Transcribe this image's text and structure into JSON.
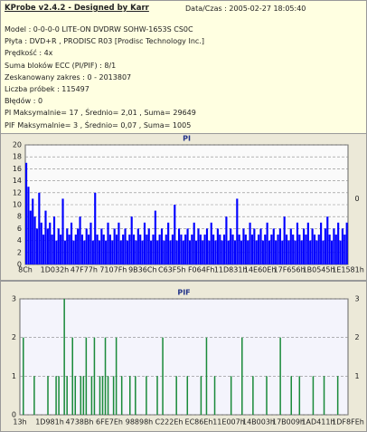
{
  "header": {
    "title": "KProbe v2.4.2 - Designed by Karr",
    "datetime": "Data/Czas : 2005-02-27 18:05:40",
    "lines": [
      "Model : 0-0-0-0 LITE-ON DVDRW SOHW-1653S CS0C",
      "Płyta : DVD+R , PRODISC R03 [Prodisc Technology Inc.]",
      "Prędkość : 4x",
      "Suma bloków ECC (PI/PIF) : 8/1",
      "Zeskanowany zakres : 0 - 2013807",
      "Liczba próbek : 115497",
      "Błędów : 0",
      "PI Maksymalnie= 17 , Średnio= 2,01 , Suma= 29649",
      "PIF Maksymalnie= 3 , Średnio= 0,07 , Suma= 1005"
    ]
  },
  "chart_data": [
    {
      "type": "bar",
      "title": "PI",
      "color": "#0000ff",
      "ylim": [
        0,
        20
      ],
      "yticks": [
        0,
        2,
        4,
        6,
        8,
        10,
        12,
        14,
        16,
        18,
        20
      ],
      "grid": true,
      "right_label": "0",
      "xtick_labels": [
        "8Ch",
        "1D032h",
        "47F77h",
        "7107Fh",
        "9B36Ch",
        "C63F5h",
        "F064Fh",
        "11D831h",
        "14E60Eh",
        "17F656h",
        "1B0545h",
        "1E1581h"
      ],
      "values": [
        17,
        13,
        9,
        11,
        8,
        6,
        12,
        7,
        5,
        9,
        6,
        7,
        5,
        8,
        4,
        6,
        5,
        11,
        4,
        6,
        5,
        7,
        4,
        5,
        6,
        8,
        5,
        4,
        6,
        5,
        7,
        4,
        12,
        5,
        4,
        6,
        5,
        4,
        7,
        5,
        4,
        6,
        5,
        7,
        4,
        5,
        6,
        4,
        5,
        8,
        5,
        4,
        6,
        5,
        4,
        7,
        5,
        6,
        4,
        5,
        9,
        4,
        5,
        6,
        4,
        5,
        7,
        4,
        5,
        10,
        4,
        6,
        5,
        4,
        5,
        6,
        4,
        5,
        7,
        4,
        6,
        5,
        4,
        5,
        6,
        4,
        7,
        5,
        4,
        6,
        5,
        4,
        5,
        8,
        4,
        6,
        5,
        4,
        11,
        5,
        4,
        6,
        5,
        4,
        7,
        5,
        6,
        4,
        5,
        6,
        4,
        5,
        7,
        4,
        5,
        6,
        4,
        5,
        6,
        4,
        8,
        5,
        4,
        6,
        5,
        4,
        7,
        5,
        4,
        6,
        5,
        7,
        4,
        6,
        5,
        4,
        5,
        7,
        4,
        6,
        8,
        5,
        4,
        6,
        5,
        7,
        4,
        6,
        5,
        7
      ]
    },
    {
      "type": "bar",
      "title": "PIF",
      "color": "#1a8a3a",
      "ylim": [
        0,
        3
      ],
      "yticks": [
        0,
        1,
        2,
        3
      ],
      "y2ticks": [
        1,
        2,
        3
      ],
      "grid": true,
      "xtick_labels": [
        "13h",
        "1D981h",
        "4738Bh",
        "6FE7Eh",
        "98898h",
        "C222Eh",
        "EC86Eh",
        "11E007h",
        "14B003h",
        "17B009h",
        "1AD411h",
        "1DF8FEh"
      ],
      "values": [
        0,
        2,
        0,
        0,
        0,
        1,
        0,
        0,
        0,
        0,
        1,
        0,
        0,
        1,
        1,
        0,
        3,
        1,
        0,
        2,
        1,
        0,
        1,
        1,
        2,
        0,
        1,
        2,
        0,
        1,
        1,
        2,
        1,
        0,
        1,
        2,
        0,
        1,
        0,
        0,
        1,
        0,
        1,
        0,
        0,
        0,
        1,
        0,
        0,
        0,
        1,
        0,
        2,
        0,
        0,
        0,
        0,
        1,
        0,
        0,
        0,
        1,
        0,
        0,
        0,
        0,
        1,
        0,
        2,
        0,
        0,
        1,
        0,
        0,
        0,
        0,
        0,
        1,
        0,
        0,
        0,
        2,
        0,
        0,
        0,
        1,
        0,
        0,
        0,
        0,
        1,
        0,
        0,
        0,
        0,
        2,
        0,
        0,
        0,
        1,
        0,
        0,
        1,
        0,
        0,
        0,
        0,
        1,
        0,
        0,
        0,
        1,
        0,
        0,
        0,
        0,
        1,
        0,
        0,
        0
      ]
    }
  ]
}
